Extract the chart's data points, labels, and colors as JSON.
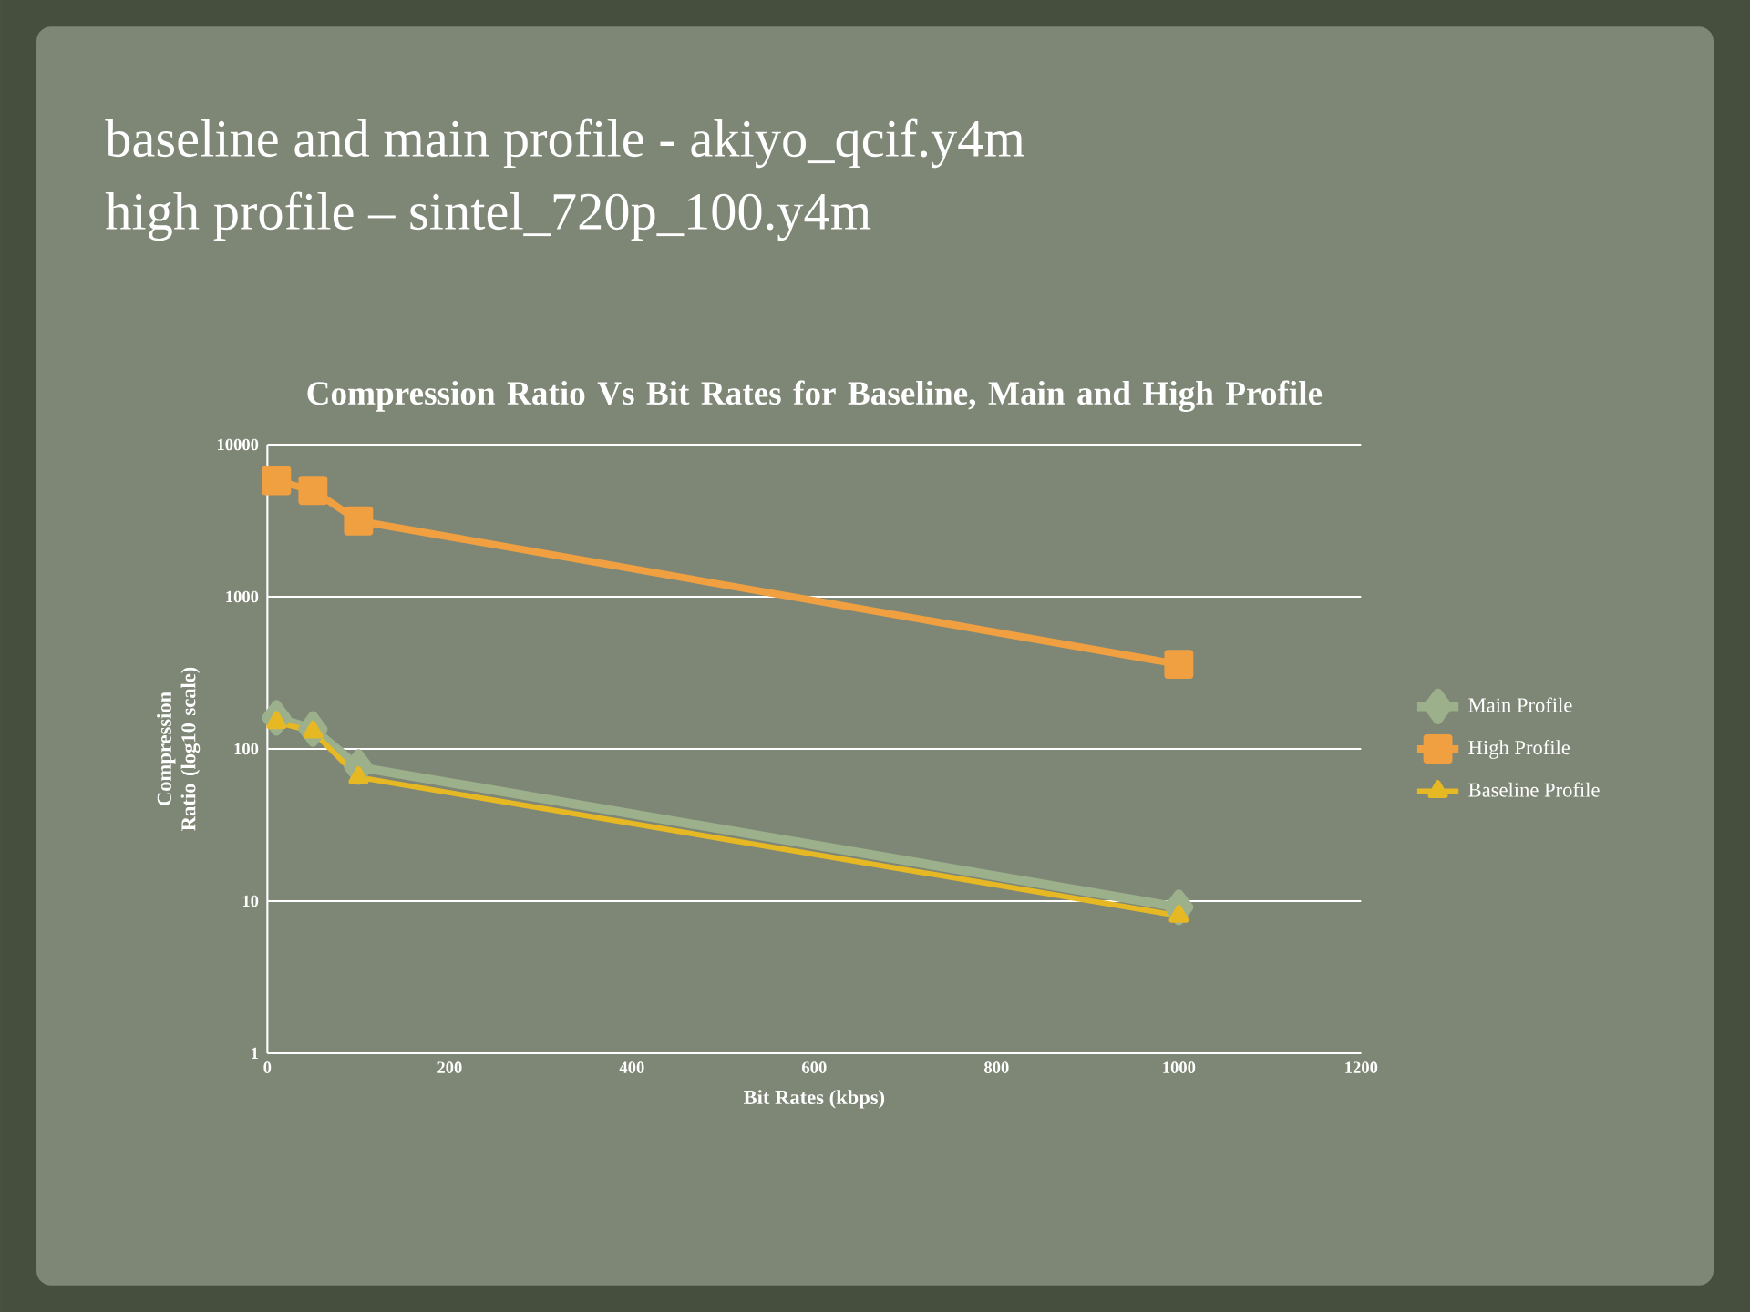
{
  "chart_data": {
    "type": "line",
    "title": "Compression Ratio Vs Bit Rates for Baseline, Main and High Profile",
    "annotations": [
      "baseline and main profile - akiyo_qcif.y4m",
      "high profile – sintel_720p_100.y4m"
    ],
    "xlabel": "Bit Rates (kbps)",
    "ylabel": "Compression Ratio (log10 scale)",
    "x": [
      10,
      50,
      100,
      1000
    ],
    "series": [
      {
        "name": "Main Profile",
        "color": "#9cb08c",
        "marker": "diamond",
        "values": [
          160,
          135,
          76,
          9.1
        ]
      },
      {
        "name": "High Profile",
        "color": "#f0a040",
        "marker": "square",
        "values": [
          5800,
          5000,
          3150,
          360
        ]
      },
      {
        "name": "Baseline Profile",
        "color": "#e6b824",
        "marker": "triangle",
        "values": [
          150,
          130,
          65,
          8
        ]
      }
    ],
    "xlim": [
      0,
      1200
    ],
    "xticks": [
      0,
      200,
      400,
      600,
      800,
      1000,
      1200
    ],
    "ylim": [
      1,
      10000
    ],
    "yticks": [
      1,
      10,
      100,
      1000,
      10000
    ],
    "log": "y",
    "grid": "y",
    "legend": "right",
    "line_style": "solid"
  }
}
